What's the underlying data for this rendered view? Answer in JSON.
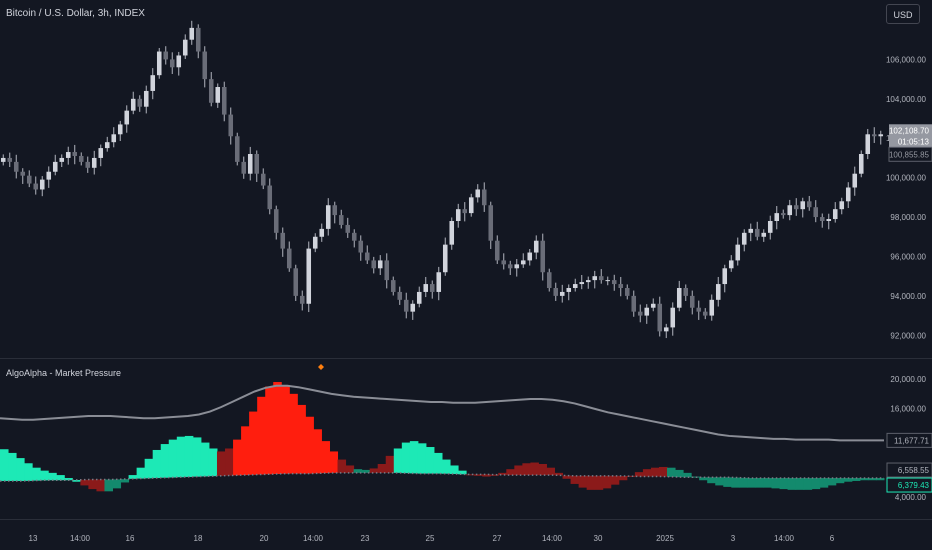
{
  "header": {
    "symbol_title": "Bitcoin / U.S. Dollar, 3h, INDEX",
    "currency_button": "USD"
  },
  "indicator": {
    "title": "AlgoAlpha - Market Pressure"
  },
  "colors": {
    "background": "#131722",
    "candle": "#b2b5be",
    "bullish": "#1de9b6",
    "bullish_dark": "#138a6d",
    "bearish": "#ff1e0e",
    "bearish_dark": "#8b1a1a",
    "upper_line": "#8a8d96",
    "dot_line": "#787b86",
    "marker": "#ff7f0e"
  },
  "chart_data": [
    {
      "type": "candlestick",
      "title": "Bitcoin / U.S. Dollar, 3h, INDEX",
      "ylim": [
        91000,
        108000
      ],
      "y_ticks": [
        "106,000.00",
        "104,000.00",
        "102,000.00",
        "100,000.00",
        "98,000.00",
        "96,000.00",
        "94,000.00",
        "92,000.00"
      ],
      "closes": [
        101000,
        100800,
        100300,
        100100,
        99700,
        99400,
        99900,
        100300,
        100800,
        101000,
        101300,
        101100,
        100800,
        100500,
        101000,
        101500,
        101800,
        102200,
        102700,
        103400,
        104000,
        103600,
        104400,
        105200,
        106400,
        106000,
        105600,
        106200,
        107000,
        107600,
        106400,
        105000,
        103800,
        104600,
        103200,
        102100,
        100800,
        100200,
        101200,
        100200,
        99600,
        98400,
        97200,
        96400,
        95400,
        94000,
        93600,
        96400,
        97000,
        97400,
        98600,
        98100,
        97600,
        97200,
        96800,
        96200,
        95800,
        95400,
        95800,
        94800,
        94200,
        93800,
        93200,
        93600,
        94200,
        94600,
        94200,
        95200,
        96600,
        97800,
        98400,
        98200,
        99000,
        99400,
        98600,
        96800,
        95800,
        95600,
        95400,
        95600,
        95800,
        96200,
        96800,
        95200,
        94400,
        94000,
        94200,
        94400,
        94600,
        94700,
        94800,
        95000,
        94800,
        94800,
        94600,
        94400,
        94000,
        93200,
        93000,
        93400,
        93600,
        92200,
        92400,
        93400,
        94400,
        94000,
        93400,
        93200,
        93000,
        93800,
        94600,
        95400,
        95800,
        96600,
        97200,
        97400,
        97000,
        97200,
        97800,
        98200,
        98100,
        98600,
        98400,
        98800,
        98500,
        98000,
        97800,
        97900,
        98400,
        98800,
        99500,
        100200,
        101200,
        102200,
        102100,
        102200
      ],
      "last_price_label": "102,108.70",
      "countdown_label": "01:05:13",
      "secondary_price_label": "100,855.85"
    },
    {
      "type": "area",
      "title": "AlgoAlpha - Market Pressure",
      "ylim": [
        2000,
        21500
      ],
      "y_ticks": [
        "20,000.00",
        "16,000.00",
        "4,000.00"
      ],
      "x_ticks": [
        "13",
        "14:00",
        "16",
        "18",
        "20",
        "14:00",
        "23",
        "25",
        "27",
        "14:00",
        "30",
        "2025",
        "3",
        "14:00",
        "6"
      ],
      "pressure_values": [
        10500,
        10000,
        9300,
        8600,
        8000,
        7600,
        7300,
        7000,
        6600,
        6100,
        5600,
        5100,
        4800,
        4800,
        5200,
        6000,
        7000,
        8000,
        9200,
        10400,
        11200,
        11800,
        12200,
        12300,
        12100,
        11400,
        10600,
        10200,
        10600,
        11800,
        13600,
        15600,
        17600,
        19000,
        19600,
        19200,
        18000,
        16500,
        14900,
        13200,
        11600,
        10200,
        9100,
        8300,
        7800,
        7700,
        7900,
        8500,
        9600,
        10600,
        11400,
        11600,
        11300,
        10800,
        10000,
        9100,
        8300,
        7600,
        7100,
        6900,
        6800,
        6900,
        7300,
        7800,
        8300,
        8600,
        8700,
        8500,
        8000,
        7300,
        6500,
        5800,
        5300,
        5000,
        5000,
        5200,
        5700,
        6300,
        6900,
        7400,
        7800,
        8000,
        8100,
        8000,
        7700,
        7300,
        6800,
        6300,
        5900,
        5600,
        5400,
        5300,
        5300,
        5300,
        5300,
        5300,
        5200,
        5100,
        5000,
        5000,
        5000,
        5100,
        5300,
        5600,
        5900,
        6100,
        6200,
        6300,
        6300,
        6300
      ],
      "pressure_sides": [
        "bull",
        "bull",
        "bull",
        "bull",
        "bull",
        "bull",
        "bull",
        "bull",
        "bull",
        "bull",
        "bear",
        "bear",
        "bear",
        "bull",
        "bull",
        "bull",
        "bull",
        "bull",
        "bull",
        "bull",
        "bull",
        "bull",
        "bull",
        "bull",
        "bull",
        "bull",
        "bull",
        "bear",
        "bear",
        "bear",
        "bear",
        "bear",
        "bear",
        "bear",
        "bear",
        "bear",
        "bear",
        "bear",
        "bear",
        "bear",
        "bear",
        "bear",
        "bear",
        "bear",
        "bull",
        "bull",
        "bear",
        "bear",
        "bear",
        "bull",
        "bull",
        "bull",
        "bull",
        "bull",
        "bull",
        "bull",
        "bull",
        "bull",
        "bear",
        "bear",
        "bear",
        "bear",
        "bear",
        "bear",
        "bear",
        "bear",
        "bear",
        "bear",
        "bear",
        "bear",
        "bear",
        "bear",
        "bear",
        "bear",
        "bear",
        "bear",
        "bear",
        "bear",
        "bear",
        "bear",
        "bear",
        "bear",
        "bear",
        "bull",
        "bull",
        "bull",
        "bull",
        "bull",
        "bull",
        "bull",
        "bull",
        "bull",
        "bull",
        "bull",
        "bull",
        "bull",
        "bull",
        "bull",
        "bull",
        "bull",
        "bull",
        "bull",
        "bull",
        "bull",
        "bull",
        "bull",
        "bull",
        "bull",
        "bull",
        "bull"
      ],
      "upper_line": [
        14700,
        14600,
        14500,
        14500,
        14600,
        14700,
        14800,
        14900,
        15000,
        15000,
        15000,
        14900,
        14800,
        14700,
        14700,
        14800,
        14900,
        15000,
        15200,
        15600,
        16200,
        16900,
        17600,
        18300,
        18800,
        19100,
        19100,
        18900,
        18600,
        18300,
        18000,
        17800,
        17600,
        17500,
        17400,
        17300,
        17200,
        17100,
        17000,
        16900,
        16900,
        16800,
        16800,
        16800,
        16900,
        17000,
        17100,
        17200,
        17300,
        17300,
        17200,
        17000,
        16700,
        16300,
        15900,
        15500,
        15200,
        14900,
        14600,
        14300,
        14000,
        13700,
        13400,
        13100,
        12800,
        12500,
        12300,
        12200,
        12100,
        12000,
        11900,
        11900,
        11800,
        11800,
        11800,
        11800,
        11700,
        11700,
        11700,
        11700,
        11700
      ],
      "upper_line_label": "11,677.71",
      "dot_line": [
        6200,
        6200,
        6300,
        6300,
        6400,
        6400,
        6500,
        6600,
        6700,
        6800,
        6900,
        7000,
        7100,
        7200,
        7200,
        7300,
        7300,
        7300,
        7300,
        7200,
        7200,
        7100,
        7100,
        7000,
        7000,
        7000,
        6900,
        6900,
        6900,
        6800,
        6800,
        6700,
        6700,
        6700,
        6600,
        6600,
        6600,
        6600,
        6600,
        6600,
        6600
      ],
      "dot_line_label": "6,558.55",
      "pressure_label": "6,379.43"
    }
  ]
}
